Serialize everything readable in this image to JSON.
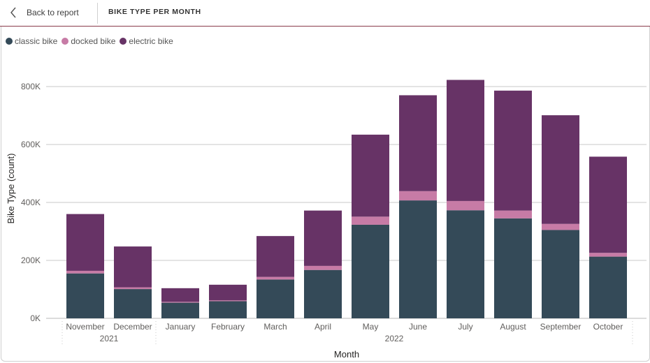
{
  "header": {
    "back_label": "Back to report",
    "title": "BIKE TYPE PER MONTH"
  },
  "colors": {
    "classic": "#344a58",
    "docked": "#c77ba6",
    "electric": "#673366",
    "grid": "#c8c8c8",
    "accent": "#8a3b4b"
  },
  "chart_data": {
    "type": "bar",
    "stacked": true,
    "title": "",
    "xlabel": "Month",
    "ylabel": "Bike Type (count)",
    "ylim": [
      0,
      800000
    ],
    "yticks": [
      0,
      200000,
      400000,
      600000,
      800000
    ],
    "ytick_labels": [
      "0K",
      "200K",
      "400K",
      "600K",
      "800K"
    ],
    "legend_position": "top-left",
    "grid": true,
    "categories": [
      "November",
      "December",
      "January",
      "February",
      "March",
      "April",
      "May",
      "June",
      "July",
      "August",
      "September",
      "October"
    ],
    "year_groups": [
      {
        "label": "2021",
        "start": 0,
        "end": 1
      },
      {
        "label": "2022",
        "start": 2,
        "end": 11
      }
    ],
    "series": [
      {
        "name": "classic bike",
        "color": "#344a58",
        "values": [
          155000,
          101000,
          54000,
          59000,
          134000,
          167000,
          323000,
          407000,
          373000,
          345000,
          305000,
          213000
        ]
      },
      {
        "name": "docked bike",
        "color": "#c77ba6",
        "values": [
          9000,
          6000,
          3000,
          3000,
          9000,
          14000,
          28000,
          32000,
          32000,
          27000,
          21000,
          13000
        ]
      },
      {
        "name": "electric bike",
        "color": "#673366",
        "values": [
          196000,
          141000,
          47000,
          54000,
          141000,
          191000,
          283000,
          331000,
          418000,
          414000,
          375000,
          332000
        ]
      }
    ]
  }
}
